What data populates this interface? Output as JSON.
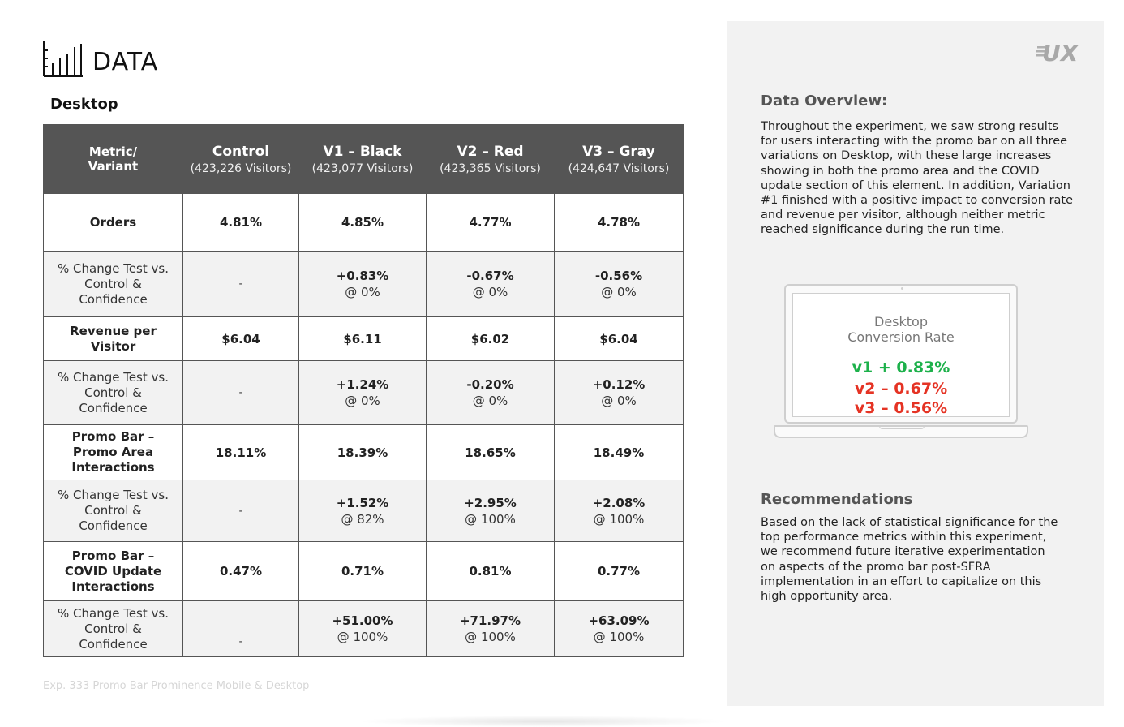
{
  "header": {
    "title": "DATA",
    "icon": "bar-chart-icon"
  },
  "section": {
    "title": "Desktop"
  },
  "table": {
    "metric_header": [
      "Metric/",
      "Variant"
    ],
    "columns": [
      {
        "name": "Control",
        "visitors": "(423,226 Visitors)"
      },
      {
        "name": "V1 – Black",
        "visitors": "(423,077 Visitors)"
      },
      {
        "name": "V2 – Red",
        "visitors": "(423,365 Visitors)"
      },
      {
        "name": "V3 – Gray",
        "visitors": "(424,647 Visitors)"
      }
    ],
    "rows": [
      {
        "type": "metric",
        "label": [
          "Orders"
        ],
        "values": [
          "4.81%",
          "4.85%",
          "4.77%",
          "4.78%"
        ]
      },
      {
        "type": "change",
        "label": [
          "% Change Test vs.",
          "Control &",
          "Confidence"
        ],
        "control": "-",
        "values": [
          [
            "+0.83%",
            "@ 0%"
          ],
          [
            "-0.67%",
            "@ 0%"
          ],
          [
            "-0.56%",
            "@ 0%"
          ]
        ]
      },
      {
        "type": "metric",
        "label": [
          "Revenue per",
          "Visitor"
        ],
        "values": [
          "$6.04",
          "$6.11",
          "$6.02",
          "$6.04"
        ]
      },
      {
        "type": "change",
        "label": [
          "% Change Test vs.",
          "Control &",
          "Confidence"
        ],
        "control": "-",
        "values": [
          [
            "+1.24%",
            "@ 0%"
          ],
          [
            "-0.20%",
            "@ 0%"
          ],
          [
            "+0.12%",
            "@ 0%"
          ]
        ]
      },
      {
        "type": "metric",
        "label": [
          "Promo Bar –",
          "Promo Area",
          "Interactions"
        ],
        "values": [
          "18.11%",
          "18.39%",
          "18.65%",
          "18.49%"
        ]
      },
      {
        "type": "change",
        "label": [
          "% Change Test vs.",
          "Control &",
          "Confidence"
        ],
        "control": "-",
        "values": [
          [
            "+1.52%",
            "@ 82%"
          ],
          [
            "+2.95%",
            "@ 100%"
          ],
          [
            "+2.08%",
            "@ 100%"
          ]
        ]
      },
      {
        "type": "metric",
        "label": [
          "Promo Bar –",
          "COVID Update",
          "Interactions"
        ],
        "values": [
          "0.47%",
          "0.71%",
          "0.81%",
          "0.77%"
        ]
      },
      {
        "type": "change",
        "label": [
          "% Change Test vs.",
          "Control &",
          "Confidence"
        ],
        "control": "-",
        "values": [
          [
            "+51.00%",
            "@ 100%"
          ],
          [
            "+71.97%",
            "@ 100%"
          ],
          [
            "+63.09%",
            "@ 100%"
          ]
        ]
      }
    ]
  },
  "footer": {
    "text": "Exp. 333 Promo Bar Prominence Mobile & Desktop"
  },
  "sidebar": {
    "logo": "UX",
    "overview_title": "Data Overview:",
    "overview_lines": [
      "Throughout the experiment, we saw strong results",
      "for users interacting with the promo bar on all three",
      "variations on Desktop, with these large increases",
      "showing in both the promo area and the COVID",
      "update section of this element. In addition, Variation",
      "#1 finished with a positive impact to conversion rate",
      "and revenue per visitor, although neither metric",
      "reached significance during the run time."
    ],
    "laptop": {
      "title_lines": [
        "Desktop",
        "Conversion Rate"
      ],
      "stats": [
        {
          "text": "v1 + 0.83%",
          "color": "#1db14b"
        },
        {
          "text": "v2 – 0.67%",
          "color": "#e53324"
        },
        {
          "text": "v3 – 0.56%",
          "color": "#e53324"
        }
      ]
    },
    "recommendations_title": "Recommendations",
    "recommendations_lines": [
      "Based on the lack of statistical significance for the",
      "top performance metrics within this experiment,",
      "we recommend future iterative experimentation",
      "on aspects of the promo bar post-SFRA",
      "implementation in an effort to capitalize on this",
      "high opportunity area."
    ]
  },
  "colors": {
    "header_bg": "#555555",
    "row_gray": "#f2f2f2",
    "panel_bg": "#f2f2f2",
    "positive": "#1db14b",
    "negative": "#e53324"
  }
}
